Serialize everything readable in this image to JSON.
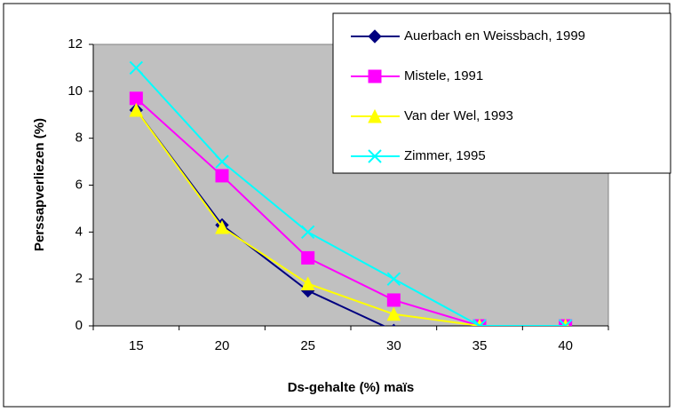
{
  "chart_data": {
    "type": "line",
    "xlabel": "Ds-gehalte (%) maïs",
    "ylabel": "Perssapverliezen (%)",
    "categories": [
      "15",
      "20",
      "25",
      "30",
      "35",
      "40"
    ],
    "series": [
      {
        "name": "Auerbach en Weissbach, 1999",
        "color": "#000080",
        "marker": "diamond",
        "values": [
          9.2,
          4.3,
          1.5,
          -0.2,
          0,
          0
        ]
      },
      {
        "name": "Mistele, 1991",
        "color": "#ff00ff",
        "marker": "square",
        "values": [
          9.7,
          6.4,
          2.9,
          1.1,
          0,
          0
        ]
      },
      {
        "name": "Van der Wel, 1993",
        "color": "#ffff00",
        "marker": "triangle",
        "values": [
          9.2,
          4.2,
          1.8,
          0.5,
          0,
          0
        ]
      },
      {
        "name": "Zimmer, 1995",
        "color": "#00ffff",
        "marker": "x",
        "values": [
          11,
          7,
          4,
          2,
          0,
          0
        ]
      }
    ],
    "ylim": [
      0,
      12
    ],
    "yticks": [
      0,
      2,
      4,
      6,
      8,
      10,
      12
    ],
    "grid": false,
    "legend": "upper right"
  }
}
